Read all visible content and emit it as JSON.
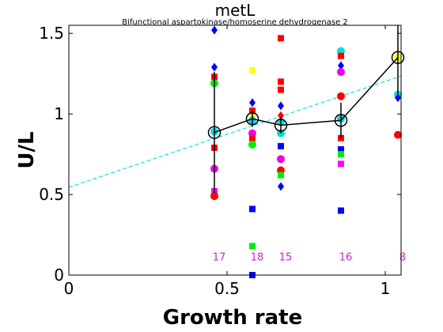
{
  "chart_data": {
    "type": "scatter",
    "title": "metL",
    "subtitle": "Bifunctional aspartokinase/homoserine dehydrogenase 2",
    "xlabel": "Growth rate",
    "ylabel": "U/L",
    "xlim": [
      0,
      1.05
    ],
    "ylim": [
      0,
      1.55
    ],
    "xticks": [
      0,
      0.5,
      1
    ],
    "xtick_labels": [
      "0",
      "0.5",
      "1"
    ],
    "yticks": [
      0,
      0.5,
      1,
      1.5
    ],
    "ytick_labels": [
      "0",
      "0.5",
      "1",
      "1.5"
    ],
    "grid": false,
    "fit_line": {
      "color": "#00ccee",
      "style": "dashed",
      "x": [
        0,
        1.05
      ],
      "y": [
        0.545,
        1.235
      ]
    },
    "mean_line": {
      "color": "#000000",
      "points": [
        {
          "x": 0.46,
          "y": 0.885,
          "lo": 0.51,
          "hi": 1.26
        },
        {
          "x": 0.58,
          "y": 0.97,
          "lo": 0.92,
          "hi": 1.02
        },
        {
          "x": 0.67,
          "y": 0.93,
          "lo": 0.88,
          "hi": 0.98
        },
        {
          "x": 0.86,
          "y": 0.96,
          "lo": 0.85,
          "hi": 1.07
        },
        {
          "x": 1.04,
          "y": 1.35,
          "lo": 1.12,
          "hi": 1.58
        }
      ]
    },
    "scatter_points": [
      {
        "x": 0.46,
        "y": 1.52,
        "shape": "diamond",
        "color": "#0000ff"
      },
      {
        "x": 0.46,
        "y": 1.29,
        "shape": "diamond",
        "color": "#0000ff"
      },
      {
        "x": 0.46,
        "y": 1.23,
        "shape": "square",
        "color": "#ff0000"
      },
      {
        "x": 0.46,
        "y": 1.19,
        "shape": "circle",
        "color": "#00ee00"
      },
      {
        "x": 0.46,
        "y": 0.89,
        "shape": "circle",
        "color": "#00dddd"
      },
      {
        "x": 0.46,
        "y": 0.79,
        "shape": "square",
        "color": "#ff0000"
      },
      {
        "x": 0.46,
        "y": 0.66,
        "shape": "circle",
        "color": "#ee00ee"
      },
      {
        "x": 0.46,
        "y": 0.52,
        "shape": "square",
        "color": "#ff00ff"
      },
      {
        "x": 0.46,
        "y": 0.49,
        "shape": "circle",
        "color": "#ff0000"
      },
      {
        "x": 0.58,
        "y": 1.27,
        "shape": "square",
        "color": "#ffff00"
      },
      {
        "x": 0.58,
        "y": 1.07,
        "shape": "diamond",
        "color": "#0000ff"
      },
      {
        "x": 0.58,
        "y": 1.02,
        "shape": "square",
        "color": "#ff0000"
      },
      {
        "x": 0.58,
        "y": 0.99,
        "shape": "diamond",
        "color": "#ffff00"
      },
      {
        "x": 0.58,
        "y": 0.96,
        "shape": "circle",
        "color": "#00dddd"
      },
      {
        "x": 0.58,
        "y": 0.88,
        "shape": "circle",
        "color": "#ee00ee"
      },
      {
        "x": 0.58,
        "y": 0.85,
        "shape": "square",
        "color": "#ff0000"
      },
      {
        "x": 0.58,
        "y": 0.81,
        "shape": "circle",
        "color": "#00ee00"
      },
      {
        "x": 0.58,
        "y": 0.41,
        "shape": "square",
        "color": "#0000ff"
      },
      {
        "x": 0.58,
        "y": 0.18,
        "shape": "square",
        "color": "#00ee00"
      },
      {
        "x": 0.58,
        "y": 0.0,
        "shape": "square",
        "color": "#0000ff"
      },
      {
        "x": 0.67,
        "y": 1.47,
        "shape": "square",
        "color": "#ff0000"
      },
      {
        "x": 0.67,
        "y": 1.2,
        "shape": "square",
        "color": "#ff0000"
      },
      {
        "x": 0.67,
        "y": 1.15,
        "shape": "square",
        "color": "#ff0000"
      },
      {
        "x": 0.67,
        "y": 1.05,
        "shape": "diamond",
        "color": "#0000ff"
      },
      {
        "x": 0.67,
        "y": 0.99,
        "shape": "diamond",
        "color": "#ff0000"
      },
      {
        "x": 0.67,
        "y": 0.95,
        "shape": "circle",
        "color": "#00dddd"
      },
      {
        "x": 0.67,
        "y": 0.88,
        "shape": "circle",
        "color": "#00dddd"
      },
      {
        "x": 0.67,
        "y": 0.8,
        "shape": "square",
        "color": "#0000ff"
      },
      {
        "x": 0.67,
        "y": 0.72,
        "shape": "circle",
        "color": "#ee00ee"
      },
      {
        "x": 0.67,
        "y": 0.65,
        "shape": "circle",
        "color": "#ff0000"
      },
      {
        "x": 0.67,
        "y": 0.62,
        "shape": "square",
        "color": "#00ee00"
      },
      {
        "x": 0.67,
        "y": 0.55,
        "shape": "diamond",
        "color": "#0000ff"
      },
      {
        "x": 0.86,
        "y": 1.39,
        "shape": "circle",
        "color": "#00dddd"
      },
      {
        "x": 0.86,
        "y": 1.36,
        "shape": "square",
        "color": "#ff0000"
      },
      {
        "x": 0.86,
        "y": 1.3,
        "shape": "diamond",
        "color": "#0000ff"
      },
      {
        "x": 0.86,
        "y": 1.26,
        "shape": "circle",
        "color": "#ee00ee"
      },
      {
        "x": 0.86,
        "y": 1.11,
        "shape": "circle",
        "color": "#ff0000"
      },
      {
        "x": 0.86,
        "y": 0.97,
        "shape": "circle",
        "color": "#00dddd"
      },
      {
        "x": 0.86,
        "y": 0.85,
        "shape": "square",
        "color": "#ff0000"
      },
      {
        "x": 0.86,
        "y": 0.78,
        "shape": "square",
        "color": "#0000ff"
      },
      {
        "x": 0.86,
        "y": 0.75,
        "shape": "square",
        "color": "#00ee00"
      },
      {
        "x": 0.86,
        "y": 0.69,
        "shape": "square",
        "color": "#ff00ff"
      },
      {
        "x": 0.86,
        "y": 0.4,
        "shape": "square",
        "color": "#0000ff"
      },
      {
        "x": 1.04,
        "y": 1.35,
        "shape": "circle",
        "color": "#ffff00"
      },
      {
        "x": 1.04,
        "y": 1.12,
        "shape": "circle",
        "color": "#00dddd"
      },
      {
        "x": 1.04,
        "y": 1.1,
        "shape": "diamond",
        "color": "#0000ff"
      },
      {
        "x": 1.04,
        "y": 0.87,
        "shape": "circle",
        "color": "#ff0000"
      }
    ],
    "sample_counts": [
      {
        "x": 0.46,
        "label": "17"
      },
      {
        "x": 0.58,
        "label": "18"
      },
      {
        "x": 0.67,
        "label": "15"
      },
      {
        "x": 0.86,
        "label": "16"
      },
      {
        "x": 1.04,
        "label": "8"
      }
    ],
    "count_label_y": 0.09
  }
}
